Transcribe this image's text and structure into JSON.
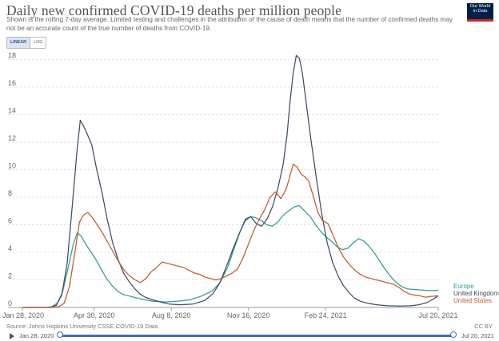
{
  "header": {
    "title": "Daily new confirmed COVID-19 deaths per million people",
    "subtitle": "Shown is the rolling 7-day average. Limited testing and challenges in the attribution of the cause of death means that the number of confirmed deaths may not be an accurate count of the true number of deaths from COVID-19.",
    "logo_line1": "Our World",
    "logo_line2": "in Data"
  },
  "controls": {
    "linear_label": "LINEAR",
    "log_label": "LOG",
    "selected_scale": "linear"
  },
  "footer": {
    "source": "Source: Johns Hopkins University CSSE COVID-19 Data",
    "license": "CC BY"
  },
  "timeline": {
    "start_label": "Jan 28, 2020",
    "end_label": "Jul 20, 2021"
  },
  "colors": {
    "Europe": "#2c9c98",
    "United Kingdom": "#3c4e66",
    "United States": "#c25b2a",
    "grid": "#dddddd",
    "timeline": "#3f6fb0"
  },
  "chart_data": {
    "type": "line",
    "ylim": [
      0,
      18.5
    ],
    "yticks": [
      0,
      2,
      4,
      6,
      8,
      10,
      12,
      14,
      16,
      18
    ],
    "xlim": [
      "2020-01-28",
      "2021-07-20"
    ],
    "xticks": [
      {
        "date": "2020-01-28",
        "label": "Jan 28, 2020"
      },
      {
        "date": "2020-04-30",
        "label": "Apr 30, 2020"
      },
      {
        "date": "2020-08-08",
        "label": "Aug 8, 2020"
      },
      {
        "date": "2020-11-16",
        "label": "Nov 16, 2020"
      },
      {
        "date": "2021-02-24",
        "label": "Feb 24, 2021"
      },
      {
        "date": "2021-07-20",
        "label": "Jul 20, 2021"
      }
    ],
    "grid": "horizontal",
    "legend": "right-end labels",
    "series": [
      {
        "name": "Europe",
        "points": [
          [
            "2020-01-28",
            0
          ],
          [
            "2020-02-26",
            0
          ],
          [
            "2020-03-06",
            0.05
          ],
          [
            "2020-03-13",
            0.3
          ],
          [
            "2020-03-20",
            1.1
          ],
          [
            "2020-03-27",
            2.8
          ],
          [
            "2020-04-03",
            4.6
          ],
          [
            "2020-04-08",
            5.4
          ],
          [
            "2020-04-13",
            5.2
          ],
          [
            "2020-04-18",
            4.7
          ],
          [
            "2020-04-25",
            4.1
          ],
          [
            "2020-05-02",
            3.5
          ],
          [
            "2020-05-09",
            2.8
          ],
          [
            "2020-05-16",
            2.1
          ],
          [
            "2020-05-23",
            1.6
          ],
          [
            "2020-05-30",
            1.2
          ],
          [
            "2020-06-06",
            0.95
          ],
          [
            "2020-06-13",
            0.85
          ],
          [
            "2020-06-20",
            0.75
          ],
          [
            "2020-07-01",
            0.6
          ],
          [
            "2020-07-15",
            0.45
          ],
          [
            "2020-08-01",
            0.4
          ],
          [
            "2020-08-15",
            0.45
          ],
          [
            "2020-09-01",
            0.55
          ],
          [
            "2020-09-15",
            0.8
          ],
          [
            "2020-09-30",
            1.2
          ],
          [
            "2020-10-10",
            1.8
          ],
          [
            "2020-10-20",
            2.9
          ],
          [
            "2020-10-28",
            4.2
          ],
          [
            "2020-11-05",
            5.5
          ],
          [
            "2020-11-12",
            6.3
          ],
          [
            "2020-11-19",
            6.6
          ],
          [
            "2020-11-26",
            6.5
          ],
          [
            "2020-12-03",
            6.3
          ],
          [
            "2020-12-10",
            6.0
          ],
          [
            "2020-12-17",
            5.9
          ],
          [
            "2020-12-24",
            6.2
          ],
          [
            "2020-12-31",
            6.7
          ],
          [
            "2021-01-07",
            7.0
          ],
          [
            "2021-01-14",
            7.3
          ],
          [
            "2021-01-21",
            7.4
          ],
          [
            "2021-01-28",
            7.0
          ],
          [
            "2021-02-04",
            6.6
          ],
          [
            "2021-02-11",
            6.0
          ],
          [
            "2021-02-18",
            5.5
          ],
          [
            "2021-02-25",
            5.1
          ],
          [
            "2021-03-04",
            4.8
          ],
          [
            "2021-03-11",
            4.4
          ],
          [
            "2021-03-18",
            4.2
          ],
          [
            "2021-03-25",
            4.3
          ],
          [
            "2021-04-01",
            4.7
          ],
          [
            "2021-04-08",
            5.0
          ],
          [
            "2021-04-15",
            4.8
          ],
          [
            "2021-04-22",
            4.4
          ],
          [
            "2021-04-29",
            3.9
          ],
          [
            "2021-05-06",
            3.3
          ],
          [
            "2021-05-13",
            2.7
          ],
          [
            "2021-05-20",
            2.2
          ],
          [
            "2021-05-27",
            1.8
          ],
          [
            "2021-06-03",
            1.5
          ],
          [
            "2021-06-10",
            1.35
          ],
          [
            "2021-06-20",
            1.3
          ],
          [
            "2021-07-01",
            1.25
          ],
          [
            "2021-07-10",
            1.22
          ],
          [
            "2021-07-20",
            1.25
          ]
        ]
      },
      {
        "name": "United Kingdom",
        "points": [
          [
            "2020-01-28",
            0
          ],
          [
            "2020-03-03",
            0
          ],
          [
            "2020-03-12",
            0.15
          ],
          [
            "2020-03-19",
            0.9
          ],
          [
            "2020-03-26",
            3.2
          ],
          [
            "2020-04-02",
            7.6
          ],
          [
            "2020-04-08",
            11.5
          ],
          [
            "2020-04-12",
            13.6
          ],
          [
            "2020-04-16",
            13.2
          ],
          [
            "2020-04-21",
            12.6
          ],
          [
            "2020-04-27",
            11.8
          ],
          [
            "2020-05-03",
            10.1
          ],
          [
            "2020-05-10",
            8.4
          ],
          [
            "2020-05-17",
            6.4
          ],
          [
            "2020-05-24",
            4.7
          ],
          [
            "2020-05-31",
            3.5
          ],
          [
            "2020-06-07",
            2.5
          ],
          [
            "2020-06-14",
            1.9
          ],
          [
            "2020-06-21",
            1.4
          ],
          [
            "2020-06-28",
            1.0
          ],
          [
            "2020-07-05",
            0.75
          ],
          [
            "2020-07-15",
            0.55
          ],
          [
            "2020-07-25",
            0.4
          ],
          [
            "2020-08-05",
            0.25
          ],
          [
            "2020-08-20",
            0.2
          ],
          [
            "2020-09-05",
            0.25
          ],
          [
            "2020-09-20",
            0.5
          ],
          [
            "2020-10-01",
            1.0
          ],
          [
            "2020-10-10",
            1.8
          ],
          [
            "2020-10-20",
            3.2
          ],
          [
            "2020-10-28",
            4.4
          ],
          [
            "2020-11-05",
            5.5
          ],
          [
            "2020-11-12",
            6.4
          ],
          [
            "2020-11-19",
            6.6
          ],
          [
            "2020-11-26",
            6.1
          ],
          [
            "2020-12-03",
            5.9
          ],
          [
            "2020-12-10",
            6.4
          ],
          [
            "2020-12-17",
            7.3
          ],
          [
            "2020-12-24",
            8.6
          ],
          [
            "2020-12-31",
            10.4
          ],
          [
            "2021-01-05",
            12.5
          ],
          [
            "2021-01-09",
            15.0
          ],
          [
            "2021-01-13",
            17.0
          ],
          [
            "2021-01-17",
            18.3
          ],
          [
            "2021-01-21",
            18.1
          ],
          [
            "2021-01-25",
            17.0
          ],
          [
            "2021-01-30",
            14.8
          ],
          [
            "2021-02-05",
            12.2
          ],
          [
            "2021-02-12",
            9.4
          ],
          [
            "2021-02-19",
            6.8
          ],
          [
            "2021-02-26",
            4.7
          ],
          [
            "2021-03-05",
            3.3
          ],
          [
            "2021-03-12",
            2.3
          ],
          [
            "2021-03-19",
            1.6
          ],
          [
            "2021-03-26",
            1.1
          ],
          [
            "2021-04-02",
            0.7
          ],
          [
            "2021-04-10",
            0.45
          ],
          [
            "2021-04-20",
            0.3
          ],
          [
            "2021-05-01",
            0.2
          ],
          [
            "2021-05-15",
            0.12
          ],
          [
            "2021-06-01",
            0.1
          ],
          [
            "2021-06-15",
            0.12
          ],
          [
            "2021-06-25",
            0.2
          ],
          [
            "2021-07-05",
            0.35
          ],
          [
            "2021-07-12",
            0.55
          ],
          [
            "2021-07-20",
            0.85
          ]
        ]
      },
      {
        "name": "United States",
        "points": [
          [
            "2020-01-28",
            0
          ],
          [
            "2020-03-05",
            0
          ],
          [
            "2020-03-15",
            0.05
          ],
          [
            "2020-03-22",
            0.3
          ],
          [
            "2020-03-29",
            1.5
          ],
          [
            "2020-04-05",
            4.0
          ],
          [
            "2020-04-11",
            6.2
          ],
          [
            "2020-04-16",
            6.7
          ],
          [
            "2020-04-22",
            6.9
          ],
          [
            "2020-04-28",
            6.5
          ],
          [
            "2020-05-04",
            6.0
          ],
          [
            "2020-05-11",
            5.4
          ],
          [
            "2020-05-18",
            4.7
          ],
          [
            "2020-05-25",
            4.0
          ],
          [
            "2020-06-01",
            3.3
          ],
          [
            "2020-06-08",
            2.7
          ],
          [
            "2020-06-15",
            2.3
          ],
          [
            "2020-06-22",
            2.0
          ],
          [
            "2020-06-29",
            1.8
          ],
          [
            "2020-07-06",
            2.1
          ],
          [
            "2020-07-13",
            2.6
          ],
          [
            "2020-07-20",
            2.9
          ],
          [
            "2020-07-27",
            3.3
          ],
          [
            "2020-08-03",
            3.2
          ],
          [
            "2020-08-10",
            3.1
          ],
          [
            "2020-08-17",
            3.0
          ],
          [
            "2020-08-24",
            2.9
          ],
          [
            "2020-08-31",
            2.7
          ],
          [
            "2020-09-07",
            2.5
          ],
          [
            "2020-09-14",
            2.4
          ],
          [
            "2020-09-21",
            2.2
          ],
          [
            "2020-09-28",
            2.1
          ],
          [
            "2020-10-05",
            2.0
          ],
          [
            "2020-10-12",
            2.1
          ],
          [
            "2020-10-19",
            2.3
          ],
          [
            "2020-10-26",
            2.5
          ],
          [
            "2020-11-02",
            2.8
          ],
          [
            "2020-11-09",
            3.6
          ],
          [
            "2020-11-16",
            4.6
          ],
          [
            "2020-11-23",
            5.6
          ],
          [
            "2020-11-30",
            6.4
          ],
          [
            "2020-12-07",
            7.1
          ],
          [
            "2020-12-14",
            8.0
          ],
          [
            "2020-12-21",
            8.4
          ],
          [
            "2020-12-28",
            7.9
          ],
          [
            "2021-01-04",
            8.6
          ],
          [
            "2021-01-09",
            9.6
          ],
          [
            "2021-01-13",
            10.4
          ],
          [
            "2021-01-18",
            10.2
          ],
          [
            "2021-01-23",
            9.7
          ],
          [
            "2021-01-28",
            9.5
          ],
          [
            "2021-02-02",
            9.2
          ],
          [
            "2021-02-08",
            8.1
          ],
          [
            "2021-02-14",
            6.9
          ],
          [
            "2021-02-20",
            6.3
          ],
          [
            "2021-02-27",
            6.1
          ],
          [
            "2021-03-06",
            5.2
          ],
          [
            "2021-03-13",
            4.3
          ],
          [
            "2021-03-20",
            3.6
          ],
          [
            "2021-03-27",
            3.1
          ],
          [
            "2021-04-03",
            2.7
          ],
          [
            "2021-04-10",
            2.4
          ],
          [
            "2021-04-17",
            2.2
          ],
          [
            "2021-04-24",
            2.1
          ],
          [
            "2021-05-01",
            2.0
          ],
          [
            "2021-05-08",
            1.9
          ],
          [
            "2021-05-15",
            1.8
          ],
          [
            "2021-05-22",
            1.7
          ],
          [
            "2021-05-29",
            1.5
          ],
          [
            "2021-06-05",
            1.2
          ],
          [
            "2021-06-12",
            1.0
          ],
          [
            "2021-06-19",
            0.9
          ],
          [
            "2021-06-26",
            0.85
          ],
          [
            "2021-07-03",
            0.75
          ],
          [
            "2021-07-10",
            0.8
          ],
          [
            "2021-07-20",
            0.85
          ]
        ]
      }
    ]
  }
}
